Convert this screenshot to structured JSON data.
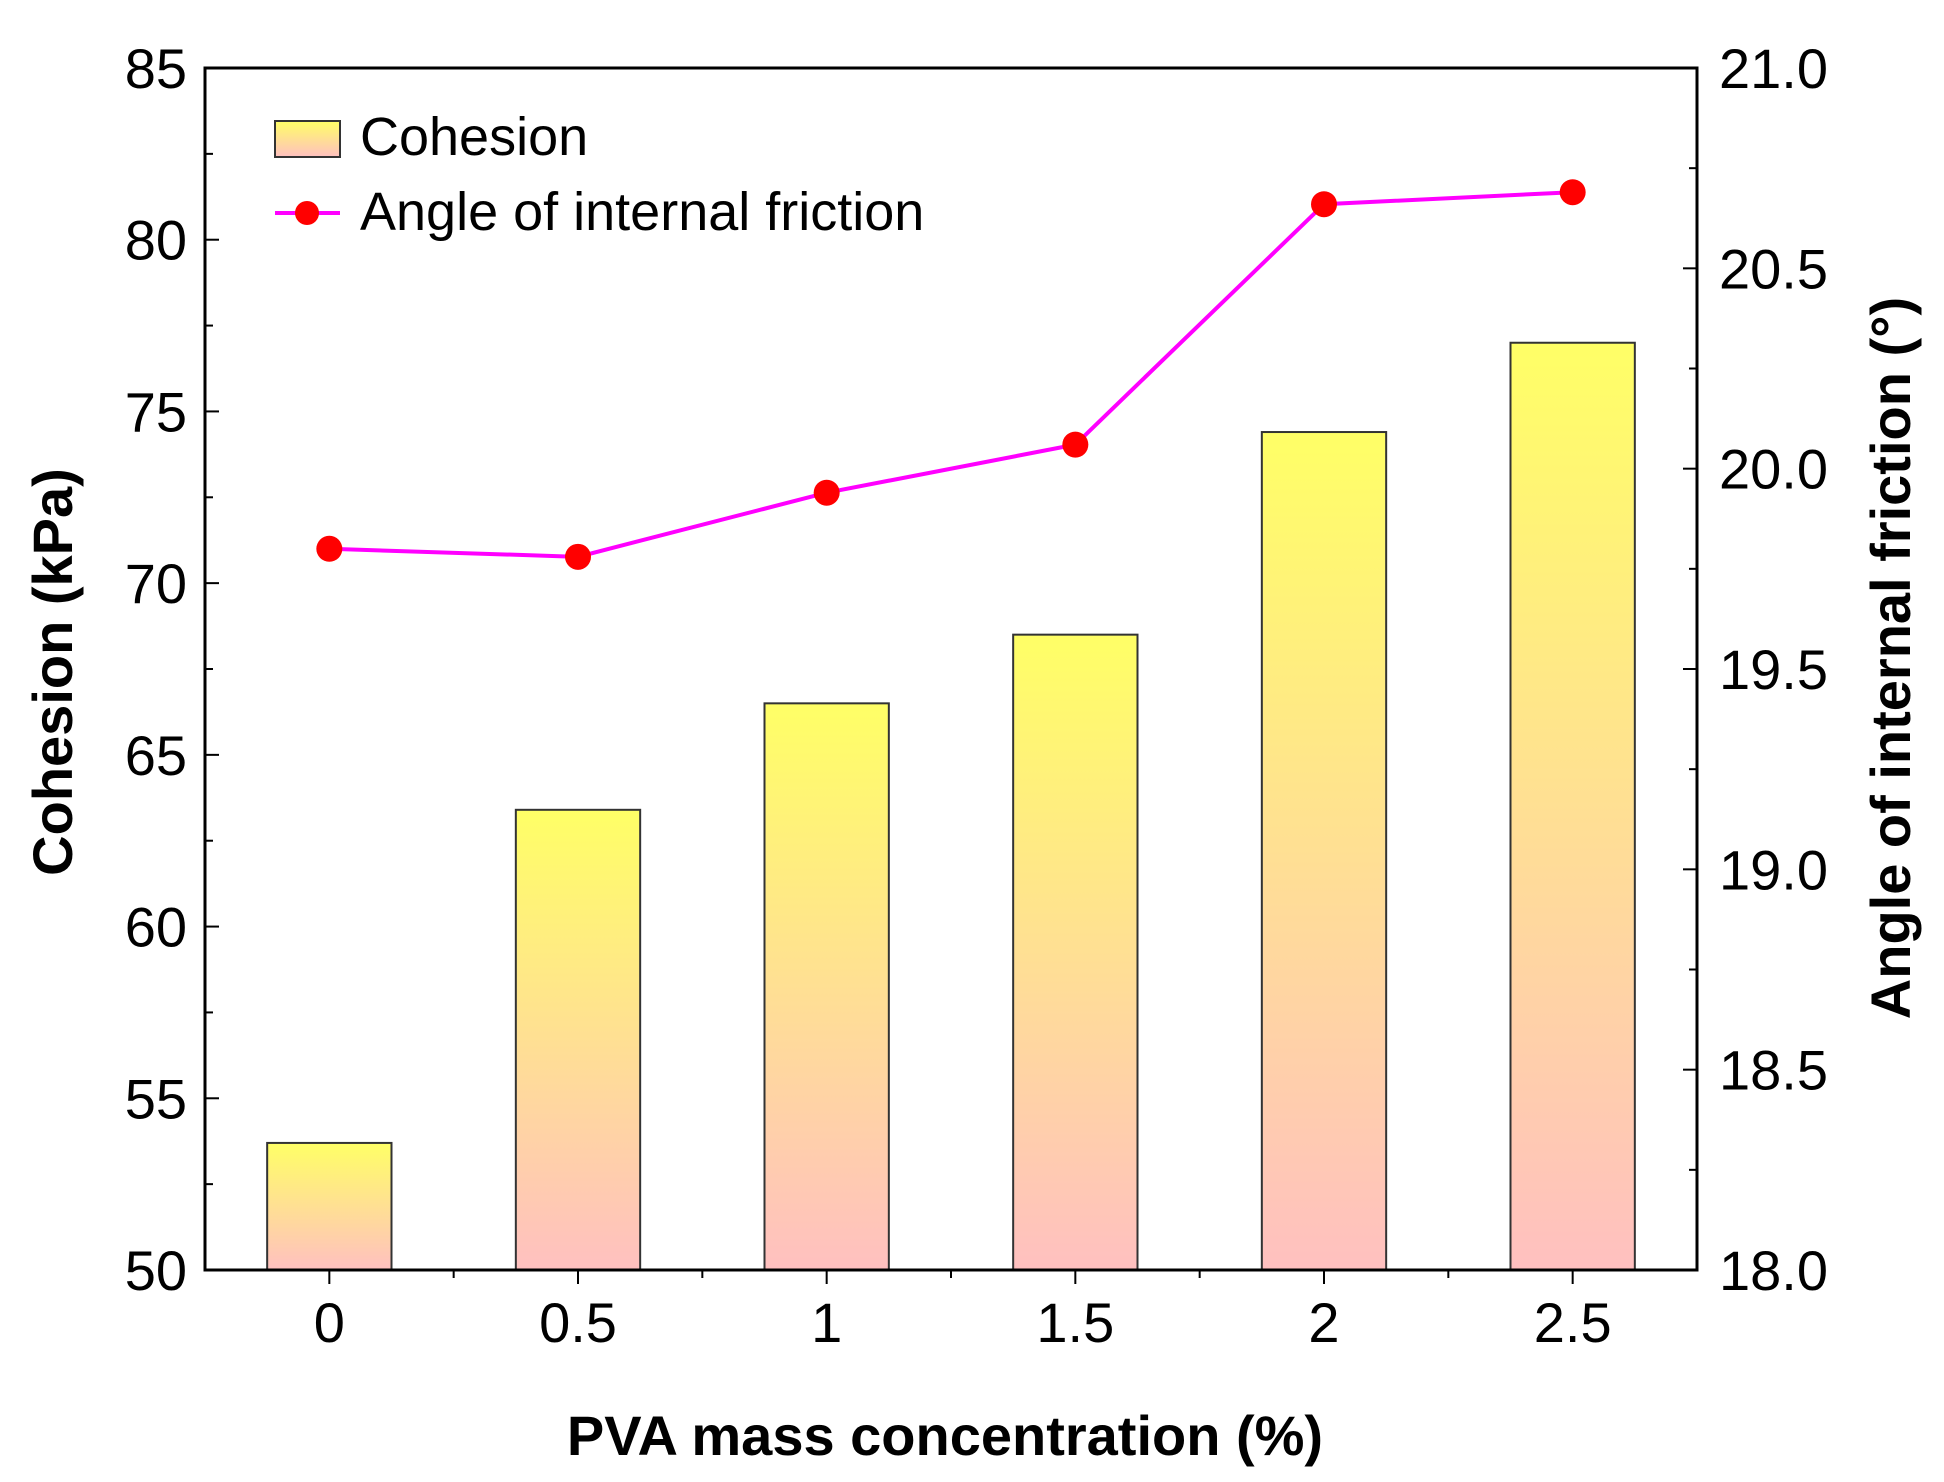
{
  "chart_data": {
    "type": "bar+line",
    "categories": [
      "0",
      "0.5",
      "1",
      "1.5",
      "2",
      "2.5"
    ],
    "x": [
      0,
      0.5,
      1,
      1.5,
      2,
      2.5
    ],
    "series": [
      {
        "name": "Cohesion",
        "type": "bar",
        "axis": "left",
        "values": [
          53.7,
          63.4,
          66.5,
          68.5,
          74.4,
          77.0
        ],
        "fill_top": "#ffff66",
        "fill_bottom": "#ffc0c0"
      },
      {
        "name": "Angle of internal friction",
        "type": "line",
        "axis": "right",
        "values": [
          19.8,
          19.78,
          19.94,
          20.06,
          20.66,
          20.69
        ],
        "line_color": "#ff00ff",
        "marker_color": "#ff0000"
      }
    ],
    "xlabel": "PVA mass concentration (%)",
    "ylabel_left": "Cohesion (kPa)",
    "ylabel_right": "Angle of internal friction (°)",
    "ylim_left": [
      50,
      85
    ],
    "yticks_left": [
      "50",
      "55",
      "60",
      "65",
      "70",
      "75",
      "80",
      "85"
    ],
    "ylim_right": [
      18.0,
      21.0
    ],
    "yticks_right": [
      "18.0",
      "18.5",
      "19.0",
      "19.5",
      "20.0",
      "20.5",
      "21.0"
    ],
    "legend": {
      "position": "top-left",
      "entries": [
        "Cohesion",
        "Angle of internal friction"
      ]
    },
    "grid": false
  }
}
